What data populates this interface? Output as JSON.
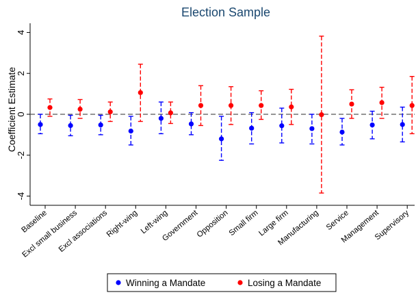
{
  "chart_data": {
    "type": "scatter",
    "title": "Election Sample",
    "xlabel": "",
    "ylabel": "Coefficient Estimate",
    "ylim": [
      -4.45,
      4.45
    ],
    "yticks": [
      -4,
      -2,
      0,
      2,
      4
    ],
    "ytick_labels": [
      "-4",
      "-2",
      "0",
      "2",
      "4"
    ],
    "grid": false,
    "reference_line": {
      "y": 0,
      "style": "dashed"
    },
    "legend_placement": "bottom",
    "categories": [
      "Baseline",
      "Excl small business",
      "Excl associations",
      "Right-wing",
      "Left-wing",
      "Government",
      "Opposition",
      "Small firm",
      "Large firm",
      "Manufacturing",
      "Service",
      "Management",
      "Supervisory"
    ],
    "series": [
      {
        "name": "Winning a Mandate",
        "color": "#0000ff",
        "marker": "circle",
        "values": [
          -0.5,
          -0.55,
          -0.52,
          -0.82,
          -0.2,
          -0.47,
          -1.2,
          -0.68,
          -0.56,
          -0.7,
          -0.87,
          -0.52,
          -0.5
        ],
        "ci_lower": [
          -0.95,
          -1.05,
          -1.0,
          -1.5,
          -0.95,
          -1.0,
          -2.25,
          -1.45,
          -1.4,
          -1.45,
          -1.5,
          -1.2,
          -1.35
        ],
        "ci_upper": [
          0.0,
          -0.05,
          -0.05,
          -0.1,
          0.6,
          0.08,
          -0.1,
          0.08,
          0.3,
          0.0,
          -0.2,
          0.15,
          0.35
        ]
      },
      {
        "name": "Losing a Mandate",
        "color": "#ff0000",
        "marker": "circle",
        "values": [
          0.33,
          0.25,
          0.12,
          1.06,
          0.07,
          0.43,
          0.43,
          0.43,
          0.36,
          -0.02,
          0.5,
          0.57,
          0.43
        ],
        "ci_lower": [
          -0.1,
          -0.2,
          -0.35,
          -0.35,
          -0.45,
          -0.55,
          -0.5,
          -0.25,
          -0.5,
          -3.85,
          -0.2,
          -0.2,
          -0.95
        ],
        "ci_upper": [
          0.75,
          0.72,
          0.6,
          2.45,
          0.6,
          1.4,
          1.35,
          1.15,
          1.22,
          3.82,
          1.2,
          1.32,
          1.85
        ]
      }
    ]
  }
}
